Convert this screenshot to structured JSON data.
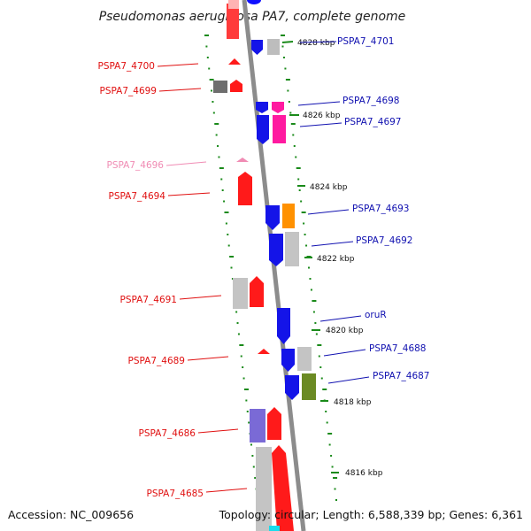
{
  "title": "Pseudomonas aeruginosa PA7, complete genome",
  "footer": {
    "accession": "Accession: NC_009656",
    "summary": "Topology: circular; Length: 6,588,339 bp; Genes: 6,361"
  },
  "colors": {
    "backbone": "#8c8c8c",
    "tick": "#1a8a1a",
    "left_label": "#e01010",
    "right_label": "#1010b0",
    "faded_label": "#f08cb4"
  },
  "kbp_labels": [
    "4828 kbp",
    "4826 kbp",
    "4824 kbp",
    "4822 kbp",
    "4820 kbp",
    "4818 kbp",
    "4816 kbp"
  ],
  "genes_left": [
    {
      "label": "PSPA7_4700",
      "faded": false
    },
    {
      "label": "PSPA7_4699",
      "faded": false
    },
    {
      "label": "PSPA7_4696",
      "faded": true
    },
    {
      "label": "PSPA7_4694",
      "faded": false
    },
    {
      "label": "PSPA7_4691",
      "faded": false
    },
    {
      "label": "PSPA7_4689",
      "faded": false
    },
    {
      "label": "PSPA7_4686",
      "faded": false
    },
    {
      "label": "PSPA7_4685",
      "faded": false
    }
  ],
  "genes_right": [
    {
      "label": "PSPA7_4701"
    },
    {
      "label": "PSPA7_4698"
    },
    {
      "label": "PSPA7_4697"
    },
    {
      "label": "PSPA7_4693"
    },
    {
      "label": "PSPA7_4692"
    },
    {
      "label": "oruR"
    },
    {
      "label": "PSPA7_4688"
    },
    {
      "label": "PSPA7_4687"
    }
  ]
}
